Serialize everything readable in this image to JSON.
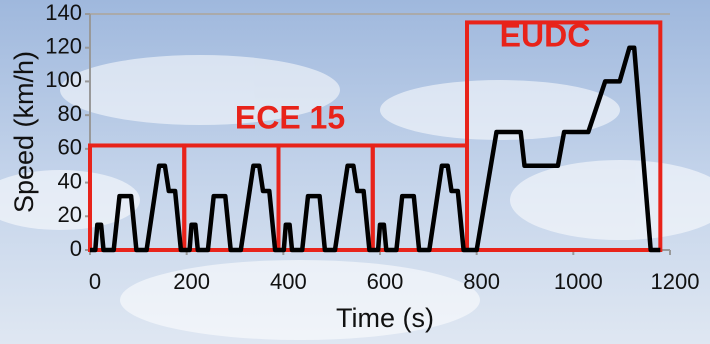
{
  "chart_data": {
    "type": "line",
    "xlabel": "Time (s)",
    "ylabel": "Speed (km/h)",
    "x": [
      0,
      11,
      15,
      23,
      28,
      49,
      61,
      85,
      96,
      117,
      143,
      155,
      163,
      176,
      188,
      195,
      206,
      210,
      218,
      223,
      244,
      256,
      280,
      291,
      312,
      338,
      350,
      358,
      371,
      383,
      390,
      401,
      405,
      413,
      418,
      439,
      451,
      475,
      486,
      507,
      533,
      545,
      553,
      566,
      578,
      585,
      596,
      600,
      608,
      613,
      634,
      646,
      670,
      681,
      702,
      728,
      740,
      748,
      761,
      773,
      780,
      800,
      841,
      891,
      899,
      968,
      981,
      1031,
      1066,
      1096,
      1116,
      1126,
      1160,
      1180
    ],
    "series": [
      {
        "color": "#000000",
        "values": [
          0,
          0,
          15,
          15,
          0,
          0,
          32,
          32,
          0,
          0,
          50,
          50,
          35,
          35,
          0,
          0,
          0,
          15,
          15,
          0,
          0,
          32,
          32,
          0,
          0,
          50,
          50,
          35,
          35,
          0,
          0,
          0,
          15,
          15,
          0,
          0,
          32,
          32,
          0,
          0,
          50,
          50,
          35,
          35,
          0,
          0,
          0,
          15,
          15,
          0,
          0,
          32,
          32,
          0,
          0,
          50,
          50,
          35,
          35,
          0,
          0,
          0,
          70,
          70,
          50,
          50,
          70,
          70,
          100,
          100,
          120,
          120,
          0,
          0
        ]
      }
    ],
    "xlim": [
      0,
      1200
    ],
    "ylim": [
      0,
      140
    ],
    "xticks": [
      0,
      200,
      400,
      600,
      800,
      1000,
      1200
    ],
    "yticks": [
      0,
      20,
      40,
      60,
      80,
      100,
      120,
      140
    ],
    "boxes": [
      {
        "x": [
          0,
          195
        ],
        "top": 62
      },
      {
        "x": [
          195,
          390
        ],
        "top": 62
      },
      {
        "x": [
          390,
          585
        ],
        "top": 62
      },
      {
        "x": [
          585,
          780
        ],
        "top": 62
      },
      {
        "x": [
          780,
          1180
        ],
        "top": 135
      }
    ],
    "box_color": "#e8231a",
    "annotations": [
      "ECE 15",
      "EUDC"
    ]
  }
}
